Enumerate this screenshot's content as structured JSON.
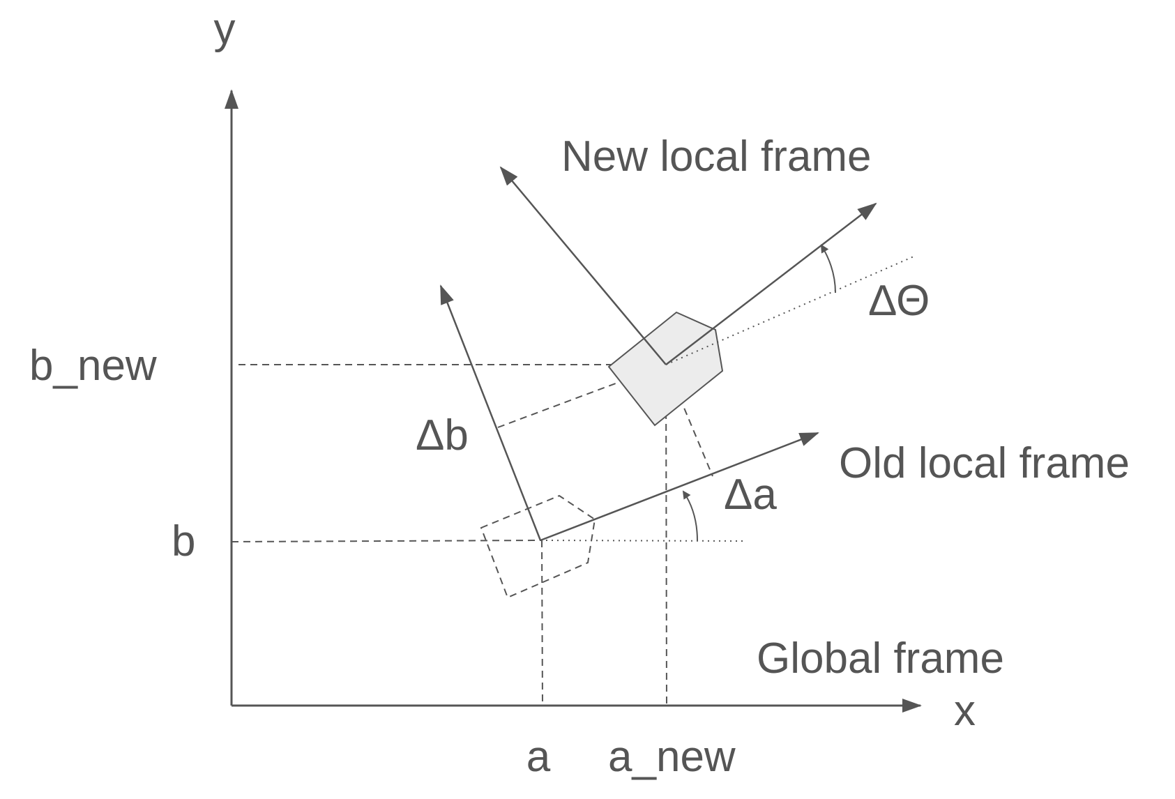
{
  "labels": {
    "y_axis": "y",
    "x_axis": "x",
    "b_new": "b_new",
    "b": "b",
    "a": "a",
    "a_new": "a_new",
    "delta_b": "Δb",
    "delta_a": "Δa",
    "delta_theta": "ΔΘ",
    "new_local_frame": "New local frame",
    "old_local_frame": "Old local frame",
    "global_frame": "Global frame"
  },
  "colors": {
    "ink": "#555555",
    "new_body_fill": "#ececec"
  }
}
